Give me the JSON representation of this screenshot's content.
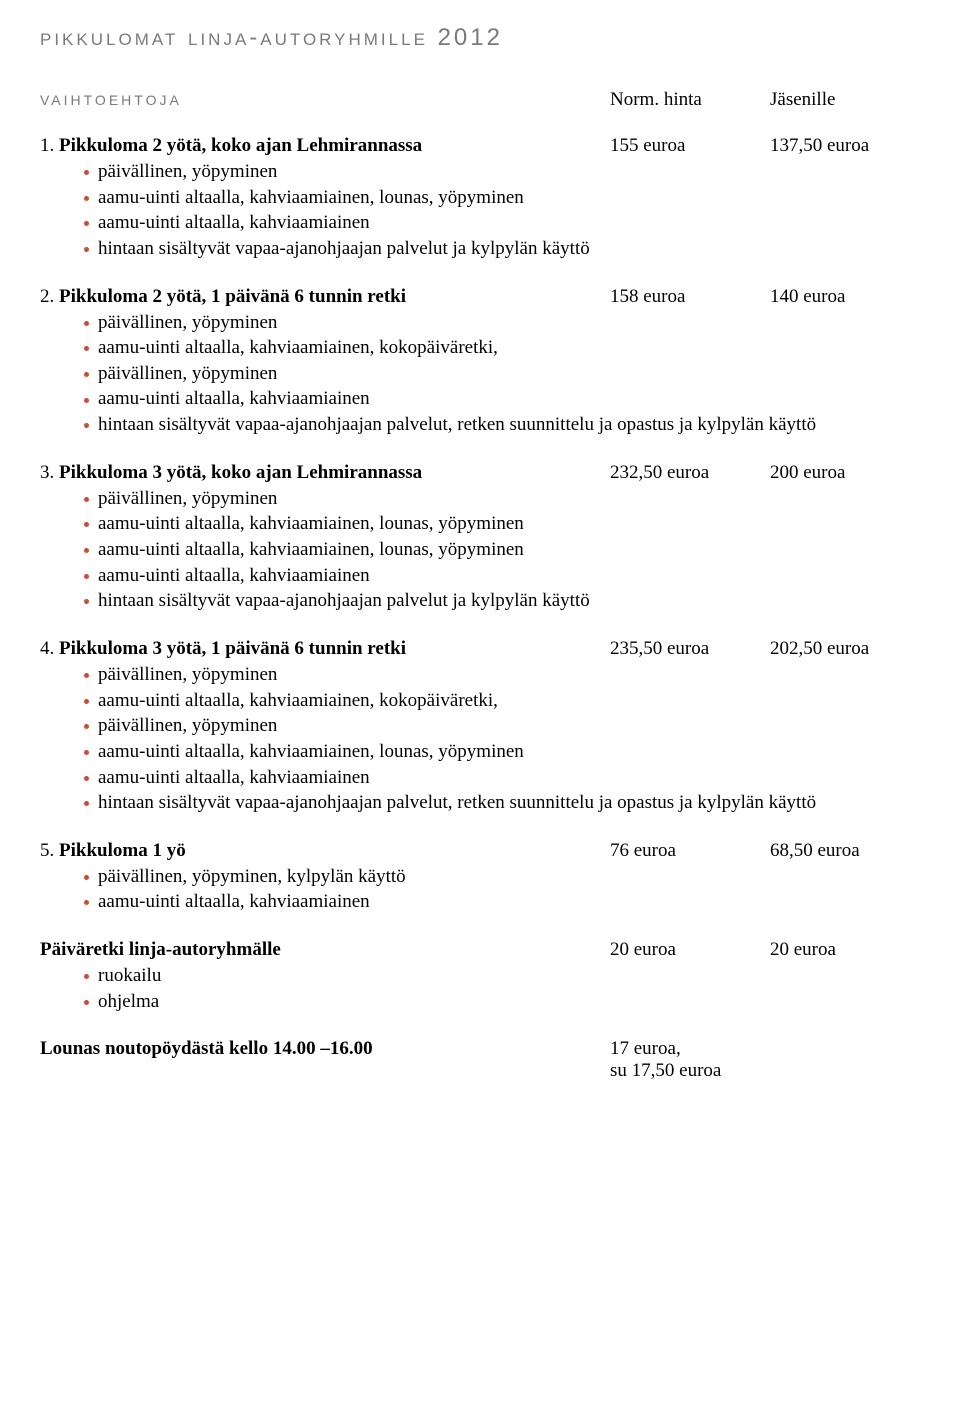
{
  "colors": {
    "title_gray": "#7a7a7a",
    "bullet_red": "#c94b3a",
    "text": "#000000",
    "background": "#ffffff"
  },
  "typography": {
    "title_family": "Trebuchet MS / sans-serif, small-caps, wide tracking",
    "body_family": "Georgia / serif",
    "title_size_pt": 24,
    "section_size_pt": 20,
    "body_size_pt": 19
  },
  "title": "pikkulomat linja-autoryhmille 2012",
  "header": {
    "label": "vaihtoehtoja",
    "col_norm": "Norm. hinta",
    "col_jasen": "Jäsenille"
  },
  "options": [
    {
      "num": "1.",
      "title": "Pikkuloma 2 yötä, koko ajan Lehmirannassa",
      "norm": "155 euroa",
      "jasen": "137,50 euroa",
      "items": [
        "päivällinen, yöpyminen",
        "aamu-uinti altaalla, kahviaamiainen, lounas, yöpyminen",
        "aamu-uinti altaalla, kahviaamiainen",
        "hintaan sisältyvät vapaa-ajanohjaajan palvelut ja kylpylän käyttö"
      ]
    },
    {
      "num": "2.",
      "title": "Pikkuloma 2 yötä, 1 päivänä 6 tunnin retki",
      "norm": "158 euroa",
      "jasen": "140 euroa",
      "items": [
        "päivällinen, yöpyminen",
        "aamu-uinti altaalla, kahviaamiainen, kokopäiväretki,",
        "päivällinen, yöpyminen",
        "aamu-uinti altaalla, kahviaamiainen",
        "hintaan sisältyvät vapaa-ajanohjaajan palvelut, retken suunnittelu ja opastus ja kylpylän käyttö"
      ]
    },
    {
      "num": "3.",
      "title": "Pikkuloma 3 yötä, koko ajan Lehmirannassa",
      "norm": "232,50 euroa",
      "jasen": "200 euroa",
      "items": [
        "päivällinen, yöpyminen",
        "aamu-uinti altaalla, kahviaamiainen, lounas, yöpyminen",
        "aamu-uinti altaalla, kahviaamiainen, lounas, yöpyminen",
        "aamu-uinti altaalla, kahviaamiainen",
        "hintaan sisältyvät vapaa-ajanohjaajan palvelut ja kylpylän käyttö"
      ]
    },
    {
      "num": "4.",
      "title": "Pikkuloma 3 yötä, 1 päivänä 6 tunnin retki",
      "norm": "235,50 euroa",
      "jasen": "202,50 euroa",
      "items": [
        "päivällinen, yöpyminen",
        "aamu-uinti altaalla, kahviaamiainen, kokopäiväretki,",
        "päivällinen, yöpyminen",
        "aamu-uinti altaalla, kahviaamiainen, lounas, yöpyminen",
        "aamu-uinti altaalla, kahviaamiainen",
        "hintaan sisältyvät vapaa-ajanohjaajan palvelut, retken suunnittelu ja opastus ja kylpylän käyttö"
      ]
    },
    {
      "num": "5.",
      "title": "Pikkuloma 1 yö",
      "norm": "76 euroa",
      "jasen": "68,50 euroa",
      "items": [
        "päivällinen, yöpyminen, kylpylän käyttö",
        "aamu-uinti altaalla, kahviaamiainen"
      ]
    }
  ],
  "daytrip": {
    "title": "Päiväretki linja-autoryhmälle",
    "norm": "20 euroa",
    "jasen": "20 euroa",
    "items": [
      "ruokailu",
      "ohjelma"
    ]
  },
  "lunch": {
    "label": "Lounas noutopöydästä kello 14.00 –16.00",
    "price1": "17 euroa,",
    "price2": "su 17,50 euroa"
  }
}
